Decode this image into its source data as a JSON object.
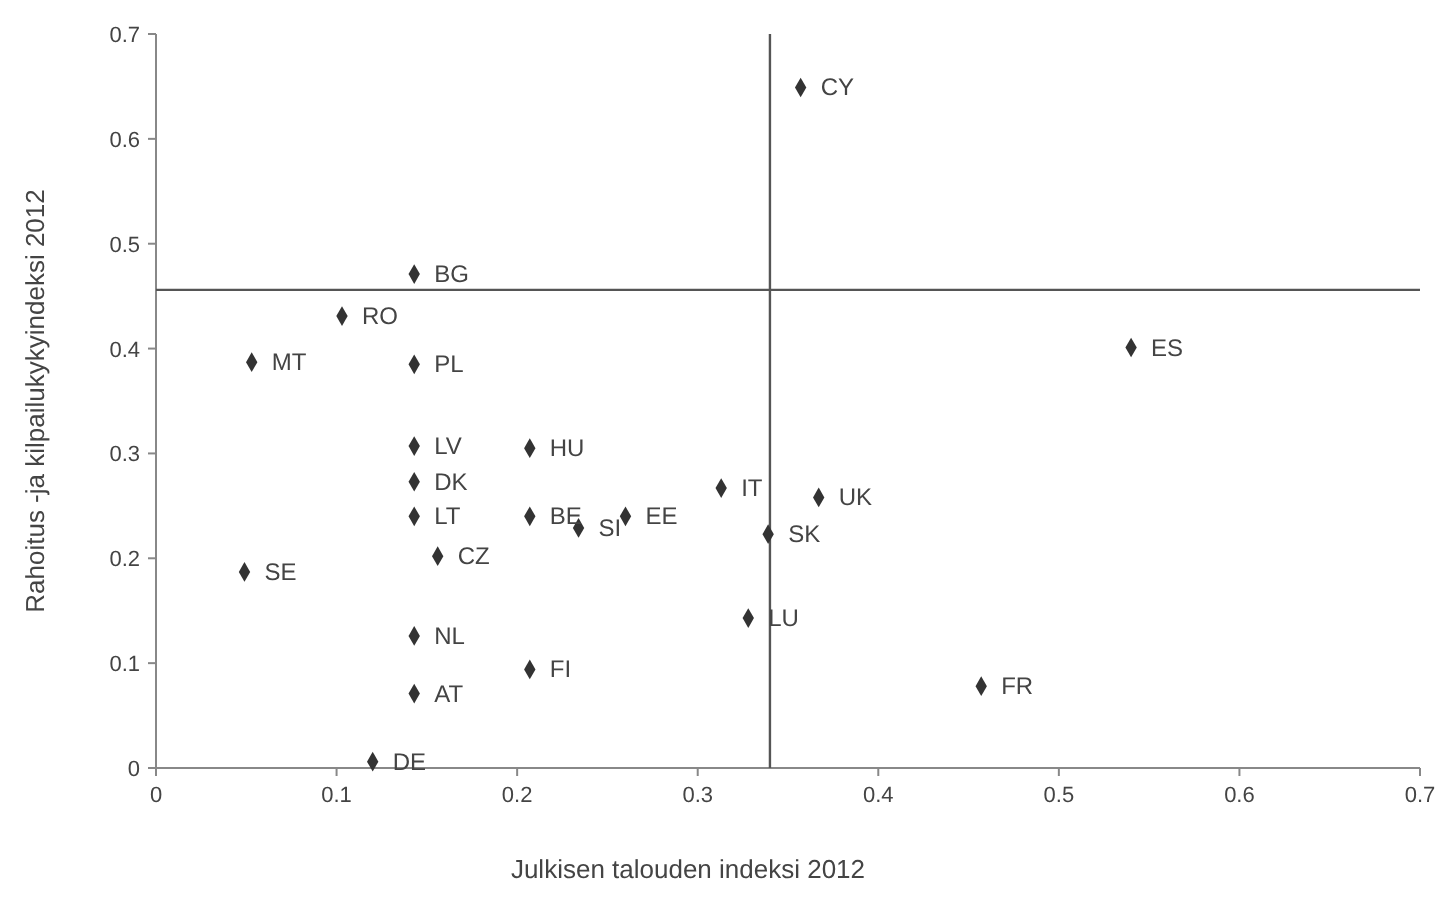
{
  "chart_data": {
    "type": "scatter",
    "xlabel": "Julkisen talouden indeksi 2012",
    "ylabel": "Rahoitus -ja kilpailukykyindeksi 2012",
    "xlim": [
      0,
      0.7
    ],
    "ylim": [
      0,
      0.7
    ],
    "xticks": [
      0,
      0.1,
      0.2,
      0.3,
      0.4,
      0.5,
      0.6,
      0.7
    ],
    "yticks": [
      0,
      0.1,
      0.2,
      0.3,
      0.4,
      0.5,
      0.6,
      0.7
    ],
    "grid": false,
    "marker": "diamond",
    "series": [
      {
        "color": "#333333",
        "x": [
          0.357,
          0.143,
          0.103,
          0.053,
          0.143,
          0.54,
          0.143,
          0.207,
          0.143,
          0.313,
          0.367,
          0.143,
          0.207,
          0.234,
          0.26,
          0.339,
          0.156,
          0.049,
          0.328,
          0.143,
          0.207,
          0.457,
          0.143,
          0.12
        ],
        "values": [
          0.649,
          0.471,
          0.431,
          0.387,
          0.385,
          0.401,
          0.307,
          0.305,
          0.273,
          0.267,
          0.258,
          0.24,
          0.24,
          0.229,
          0.24,
          0.223,
          0.202,
          0.187,
          0.143,
          0.126,
          0.094,
          0.078,
          0.071,
          0.006
        ]
      }
    ],
    "annotations": [
      {
        "text": "CY",
        "x": 0.357,
        "y": 0.649
      },
      {
        "text": "BG",
        "x": 0.143,
        "y": 0.471
      },
      {
        "text": "RO",
        "x": 0.103,
        "y": 0.431
      },
      {
        "text": "MT",
        "x": 0.053,
        "y": 0.387
      },
      {
        "text": "PL",
        "x": 0.143,
        "y": 0.385
      },
      {
        "text": "ES",
        "x": 0.54,
        "y": 0.401
      },
      {
        "text": "LV",
        "x": 0.143,
        "y": 0.307
      },
      {
        "text": "HU",
        "x": 0.207,
        "y": 0.305
      },
      {
        "text": "DK",
        "x": 0.143,
        "y": 0.273
      },
      {
        "text": "IT",
        "x": 0.313,
        "y": 0.267
      },
      {
        "text": "UK",
        "x": 0.367,
        "y": 0.258
      },
      {
        "text": "LT",
        "x": 0.143,
        "y": 0.24
      },
      {
        "text": "BE",
        "x": 0.207,
        "y": 0.24
      },
      {
        "text": "SI",
        "x": 0.234,
        "y": 0.229
      },
      {
        "text": "EE",
        "x": 0.26,
        "y": 0.24
      },
      {
        "text": "SK",
        "x": 0.339,
        "y": 0.223
      },
      {
        "text": "CZ",
        "x": 0.156,
        "y": 0.202
      },
      {
        "text": "SE",
        "x": 0.049,
        "y": 0.187
      },
      {
        "text": "LU",
        "x": 0.328,
        "y": 0.143
      },
      {
        "text": "NL",
        "x": 0.143,
        "y": 0.126
      },
      {
        "text": "FI",
        "x": 0.207,
        "y": 0.094
      },
      {
        "text": "FR",
        "x": 0.457,
        "y": 0.078
      },
      {
        "text": "AT",
        "x": 0.143,
        "y": 0.071
      },
      {
        "text": "DE",
        "x": 0.12,
        "y": 0.006
      }
    ],
    "ref_lines": [
      {
        "axis": "x",
        "value": 0.34,
        "color": "#555555"
      },
      {
        "axis": "y",
        "value": 0.456,
        "color": "#555555"
      }
    ]
  }
}
